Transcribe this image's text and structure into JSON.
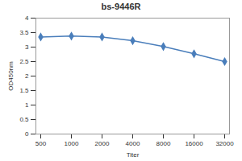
{
  "chart_data": {
    "type": "line",
    "title": "bs-9446R",
    "x_label": "Titer",
    "y_label": "OD450nm",
    "categories": [
      "500",
      "1000",
      "2000",
      "4000",
      "8000",
      "16000",
      "32000"
    ],
    "values": [
      3.35,
      3.38,
      3.35,
      3.22,
      3.02,
      2.77,
      2.5
    ],
    "color": "#4a7ebb",
    "marker": "diamond",
    "ylim": [
      0,
      4
    ],
    "yticks": [
      0,
      0.5,
      1,
      1.5,
      2,
      2.5,
      3,
      3.5,
      4
    ],
    "grid": false
  }
}
